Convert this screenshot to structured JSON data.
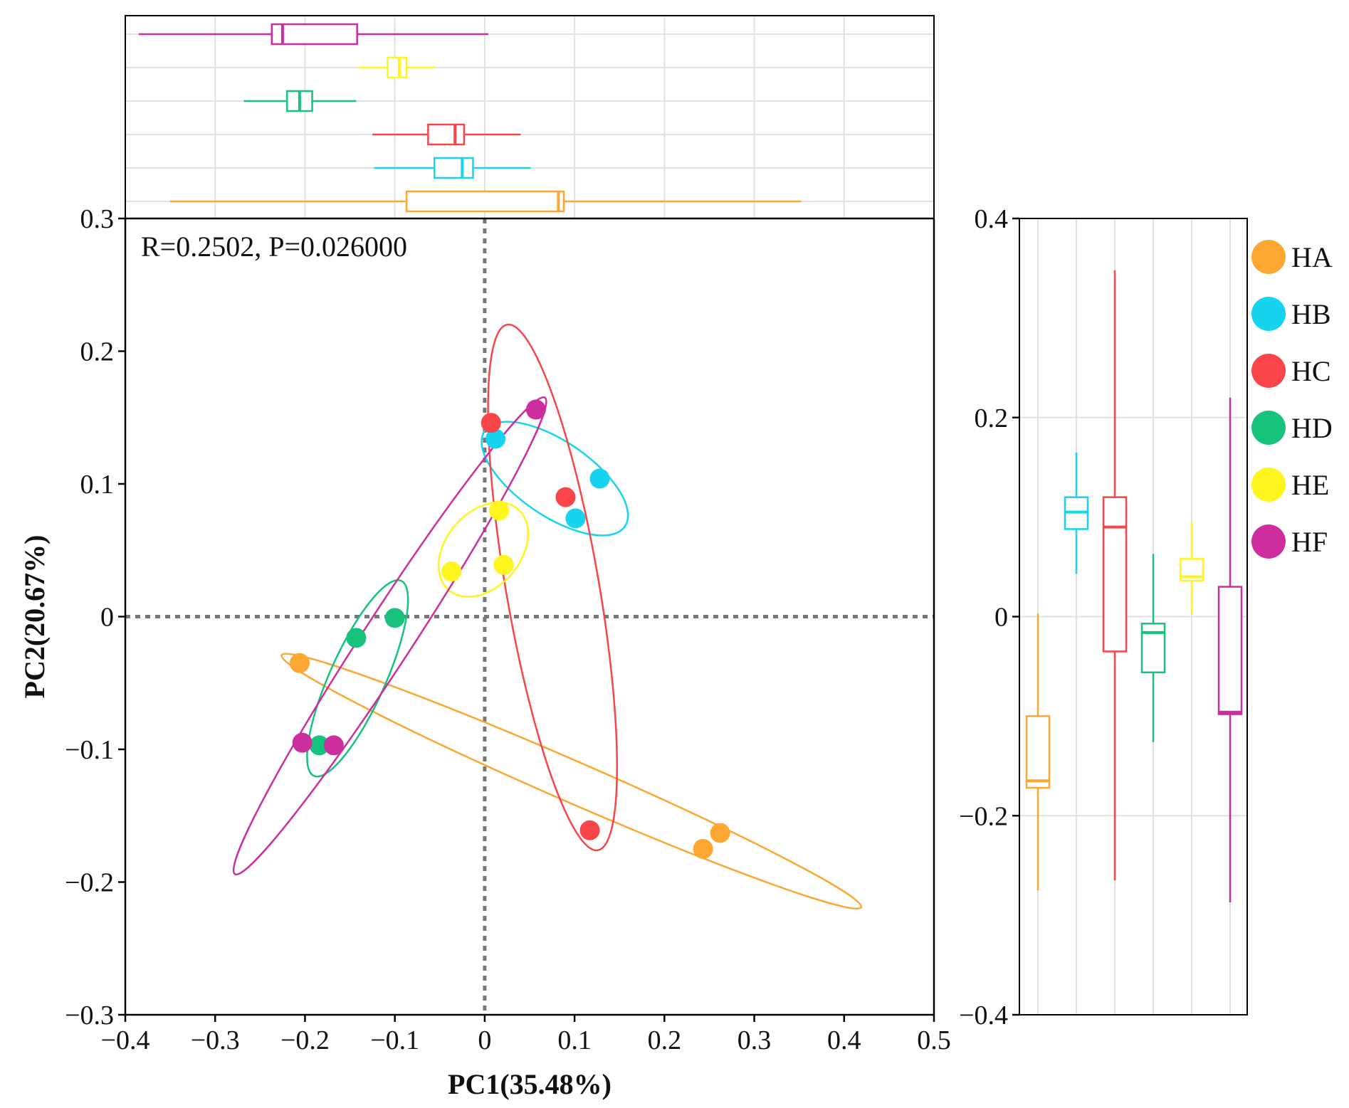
{
  "chart_data": {
    "type": "scatter",
    "xlabel": "PC1(35.48%)",
    "ylabel": "PC2(20.67%)",
    "annotation": "R=0.2502, P=0.026000",
    "xlim": [
      -0.4,
      0.5
    ],
    "ylim": [
      -0.3,
      0.3
    ],
    "xticks": [
      -0.4,
      -0.3,
      -0.2,
      -0.1,
      0,
      0.1,
      0.2,
      0.3,
      0.4,
      0.5
    ],
    "yticks": [
      -0.3,
      -0.2,
      -0.1,
      0,
      0.1,
      0.2,
      0.3
    ],
    "xtick_labels": [
      "−0.4",
      "−0.3",
      "−0.2",
      "−0.1",
      "0",
      "0.1",
      "0.2",
      "0.3",
      "0.4",
      "0.5"
    ],
    "ytick_labels": [
      "−0.3",
      "−0.2",
      "−0.1",
      "0",
      "0.1",
      "0.2",
      "0.3"
    ],
    "right_ylim": [
      -0.4,
      0.4
    ],
    "right_yticks": [
      -0.4,
      -0.2,
      0,
      0.2,
      0.4
    ],
    "right_ytick_labels": [
      "−0.4",
      "−0.2",
      "0",
      "0.2",
      "0.4"
    ],
    "reference_lines": {
      "x": 0,
      "y": 0,
      "style": "dotted"
    },
    "grid": true,
    "legend_position": "right",
    "series": [
      {
        "name": "HA",
        "color": "#FBA731",
        "points": [
          [
            -0.206,
            -0.035
          ],
          [
            0.262,
            -0.163
          ],
          [
            0.243,
            -0.175
          ]
        ],
        "ellipse": [
          [
            -0.226,
            -0.029
          ],
          [
            0.419,
            -0.219
          ]
        ],
        "box_x": {
          "min": -0.35,
          "q1": -0.087,
          "median": 0.082,
          "q3": 0.088,
          "max": 0.352
        },
        "box_y": {
          "min": -0.275,
          "q1": -0.172,
          "median": -0.165,
          "q3": -0.1,
          "max": 0.003
        }
      },
      {
        "name": "HB",
        "color": "#16D3EF",
        "points": [
          [
            0.128,
            0.104
          ],
          [
            0.101,
            0.074
          ],
          [
            0.012,
            0.134
          ]
        ],
        "ellipse": [
          [
            0.0,
            0.14
          ],
          [
            0.156,
            0.068
          ]
        ],
        "box_x": {
          "min": -0.123,
          "q1": -0.056,
          "median": -0.025,
          "q3": -0.013,
          "max": 0.051
        },
        "box_y": {
          "min": 0.043,
          "q1": 0.088,
          "median": 0.105,
          "q3": 0.12,
          "max": 0.165
        }
      },
      {
        "name": "HC",
        "color": "#F94449",
        "points": [
          [
            0.007,
            0.146
          ],
          [
            0.09,
            0.09
          ],
          [
            0.117,
            -0.161
          ]
        ],
        "ellipse": [
          [
            0.025,
            0.22
          ],
          [
            0.126,
            -0.176
          ]
        ],
        "box_x": {
          "min": -0.125,
          "q1": -0.063,
          "median": -0.033,
          "q3": -0.023,
          "max": 0.04
        },
        "box_y": {
          "min": -0.265,
          "q1": -0.035,
          "median": 0.09,
          "q3": 0.12,
          "max": 0.348
        }
      },
      {
        "name": "HD",
        "color": "#17C27C",
        "points": [
          [
            -0.1,
            -0.001
          ],
          [
            -0.143,
            -0.016
          ],
          [
            -0.184,
            -0.097
          ]
        ],
        "ellipse": [
          [
            -0.093,
            0.027
          ],
          [
            -0.19,
            -0.12
          ]
        ],
        "box_x": {
          "min": -0.268,
          "q1": -0.22,
          "median": -0.206,
          "q3": -0.192,
          "max": -0.143
        },
        "box_y": {
          "min": -0.126,
          "q1": -0.056,
          "median": -0.016,
          "q3": -0.007,
          "max": 0.063
        }
      },
      {
        "name": "HE",
        "color": "#FFF51E",
        "points": [
          [
            0.016,
            0.08
          ],
          [
            -0.037,
            0.034
          ],
          [
            0.021,
            0.039
          ]
        ],
        "ellipse": [
          [
            0.037,
            0.081
          ],
          [
            -0.04,
            0.02
          ]
        ],
        "box_x": {
          "min": -0.14,
          "q1": -0.108,
          "median": -0.095,
          "q3": -0.087,
          "max": -0.055
        },
        "box_y": {
          "min": 0.003,
          "q1": 0.036,
          "median": 0.04,
          "q3": 0.058,
          "max": 0.095
        }
      },
      {
        "name": "HF",
        "color": "#CC2E9E",
        "points": [
          [
            0.057,
            0.156
          ],
          [
            -0.203,
            -0.095
          ],
          [
            -0.168,
            -0.097
          ]
        ],
        "ellipse": [
          [
            0.067,
            0.165
          ],
          [
            -0.278,
            -0.194
          ]
        ],
        "box_x": {
          "min": -0.385,
          "q1": -0.237,
          "median": -0.225,
          "q3": -0.142,
          "max": 0.004
        },
        "box_y": {
          "min": -0.287,
          "q1": -0.098,
          "median": -0.096,
          "q3": 0.03,
          "max": 0.22
        }
      }
    ]
  }
}
